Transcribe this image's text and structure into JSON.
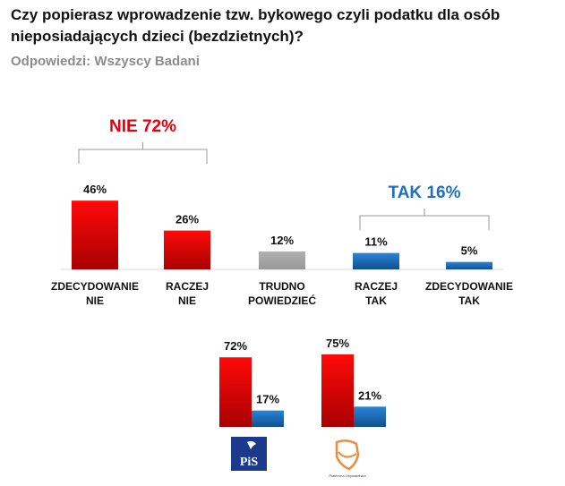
{
  "title_line1": "Czy popierasz wprowadzenie tzw. bykowego czyli podatku dla osób",
  "title_line2": "nieposiadających dzieci (bezdzietnych)?",
  "subtitle": "Odpowiedzi: Wszyscy Badani",
  "colors": {
    "red": "#e8000b",
    "gray": "#a6a6a6",
    "blue": "#1f6fbf"
  },
  "chart_data": [
    {
      "type": "bar",
      "categories": [
        [
          "ZDECYDOWANIE",
          "NIE"
        ],
        [
          "RACZEJ",
          "NIE"
        ],
        [
          "TRUDNO",
          "POWIEDZIEĆ"
        ],
        [
          "RACZEJ",
          "TAK"
        ],
        [
          "ZDECYDOWANIE",
          "TAK"
        ]
      ],
      "values": [
        46,
        26,
        12,
        11,
        5
      ],
      "data_labels": [
        "46%",
        "26%",
        "12%",
        "11%",
        "5%"
      ],
      "bar_colors": [
        "red",
        "red",
        "gray",
        "blue",
        "blue"
      ],
      "annotations": [
        {
          "text": "NIE 72%",
          "color": "red",
          "spans": [
            0,
            1
          ]
        },
        {
          "text": "TAK 16%",
          "color": "blue",
          "spans": [
            3,
            4
          ]
        }
      ]
    },
    {
      "type": "bar",
      "categories": [
        "PiS",
        "Platforma Obywatelska"
      ],
      "series": [
        {
          "values": [
            72,
            75
          ],
          "data_labels": [
            "72%",
            "75%"
          ],
          "color": "red"
        },
        {
          "values": [
            17,
            21
          ],
          "data_labels": [
            "17%",
            "21%"
          ],
          "color": "blue"
        }
      ],
      "logos": {
        "pis": "PiS",
        "po": "Platforma Obywatelska"
      }
    }
  ]
}
